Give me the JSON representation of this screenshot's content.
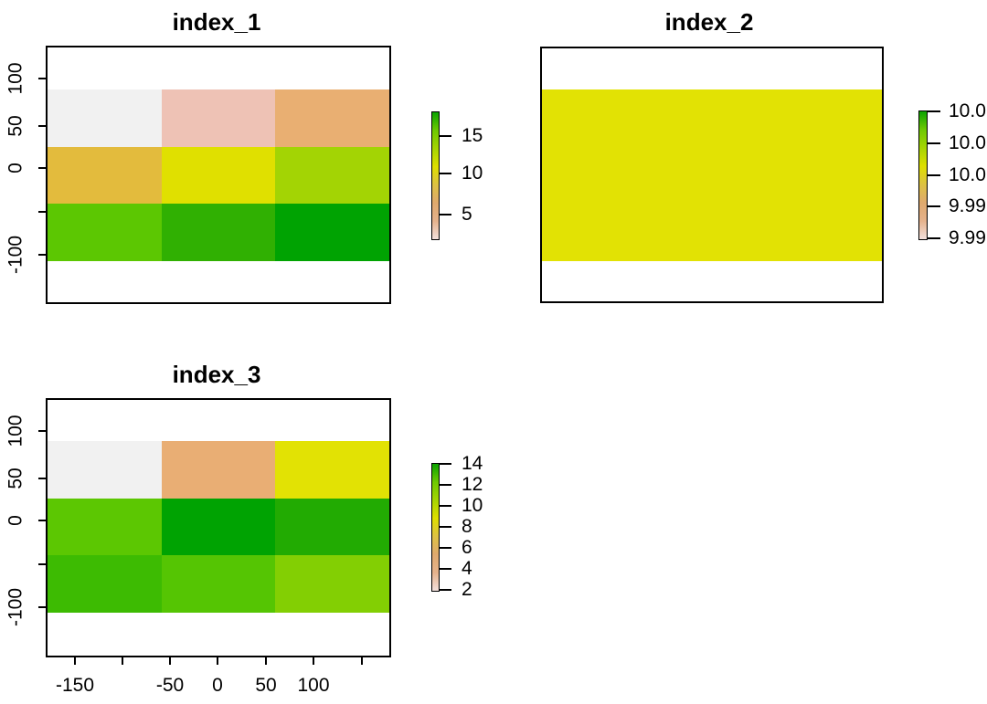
{
  "figure": {
    "background": "#ffffff",
    "text_color": "#000000"
  },
  "legend_gradient": [
    "#0ba301",
    "#6ec902",
    "#a6d403",
    "#dedf00",
    "#ddc243",
    "#dfa96e",
    "#e5b28c",
    "#f2e0dc"
  ],
  "panels": [
    {
      "title": "index_1",
      "y_axis": {
        "tick_labels": [
          "100",
          "50",
          "0",
          "",
          "-100"
        ]
      },
      "x_axis": {
        "tick_labels": []
      },
      "heatmap_colors": [
        [
          "#f1f1f1",
          "#eec2b5",
          "#e9af72"
        ],
        [
          "#e3bb3d",
          "#e0e000",
          "#a3d404"
        ],
        [
          "#5cc702",
          "#30b002",
          "#00a302"
        ]
      ],
      "legend": {
        "tick_labels": [
          "15",
          "10",
          "5"
        ]
      }
    },
    {
      "title": "index_2",
      "band_color": "#e2e204",
      "y_axis": {
        "tick_labels": []
      },
      "x_axis": {
        "tick_labels": []
      },
      "legend": {
        "tick_labels": [
          "10.0",
          "10.0",
          "10.0",
          "9.99",
          "9.99"
        ]
      }
    },
    {
      "title": "index_3",
      "y_axis": {
        "tick_labels": [
          "100",
          "50",
          "0",
          "",
          "-100"
        ]
      },
      "x_axis": {
        "tick_labels": [
          "-150",
          "",
          "-50",
          "0",
          "50",
          "100",
          ""
        ]
      },
      "heatmap_colors": [
        [
          "#f1f1f1",
          "#e9ae74",
          "#e2e204"
        ],
        [
          "#5cc702",
          "#00a302",
          "#22ab02"
        ],
        [
          "#3dbb02",
          "#55c503",
          "#83cf03"
        ]
      ],
      "legend": {
        "tick_labels": [
          "14",
          "12",
          "10",
          "8",
          "6",
          "4",
          "2"
        ]
      }
    }
  ],
  "chart_data": [
    {
      "type": "heatmap",
      "title": "index_1",
      "grid": "3x3",
      "x_axis_ticks_shown": [],
      "y_axis_ticks_shown": [
        100,
        50,
        0,
        -100
      ],
      "values_estimated_from_colors": [
        [
          2,
          4,
          6
        ],
        [
          8,
          10,
          12
        ],
        [
          14,
          16,
          18
        ]
      ],
      "cell_colors": [
        [
          "#f1f1f1",
          "#eec2b5",
          "#e9af72"
        ],
        [
          "#e3bb3d",
          "#e0e000",
          "#a3d404"
        ],
        [
          "#5cc702",
          "#30b002",
          "#00a302"
        ]
      ],
      "colorbar_ticks": [
        15,
        10,
        5
      ],
      "colorbar_scale_low_to_high": [
        "pink-white",
        "tan",
        "yellow",
        "green"
      ],
      "legend_position": "right",
      "grid_lines": false
    },
    {
      "type": "heatmap",
      "title": "index_2",
      "grid": "uniform 3x3 (all cells same color, appears as one yellow band)",
      "x_axis_ticks_shown": [],
      "y_axis_ticks_shown": [],
      "values_estimated_from_colors": [
        [
          10,
          10,
          10
        ],
        [
          10,
          10,
          10
        ],
        [
          10,
          10,
          10
        ]
      ],
      "cell_colors": [
        [
          "#e2e204"
        ]
      ],
      "colorbar_ticks_visible": [
        "10.0",
        "10.0",
        "10.0",
        "9.99",
        "9.99"
      ],
      "colorbar_labels_note": "labels clipped by right image edge",
      "legend_position": "right",
      "grid_lines": false
    },
    {
      "type": "heatmap",
      "title": "index_3",
      "grid": "3x3",
      "x_axis_ticks_shown": [
        -150,
        -50,
        0,
        50,
        100
      ],
      "y_axis_ticks_shown": [
        100,
        50,
        0,
        -100
      ],
      "values_estimated_from_colors": [
        [
          2,
          5,
          8
        ],
        [
          11,
          14,
          13
        ],
        [
          12,
          11,
          10
        ]
      ],
      "cell_colors": [
        [
          "#f1f1f1",
          "#e9ae74",
          "#e2e204"
        ],
        [
          "#5cc702",
          "#00a302",
          "#22ab02"
        ],
        [
          "#3dbb02",
          "#55c503",
          "#83cf03"
        ]
      ],
      "colorbar_ticks": [
        14,
        12,
        10,
        8,
        6,
        4,
        2
      ],
      "legend_position": "right",
      "grid_lines": false
    }
  ]
}
